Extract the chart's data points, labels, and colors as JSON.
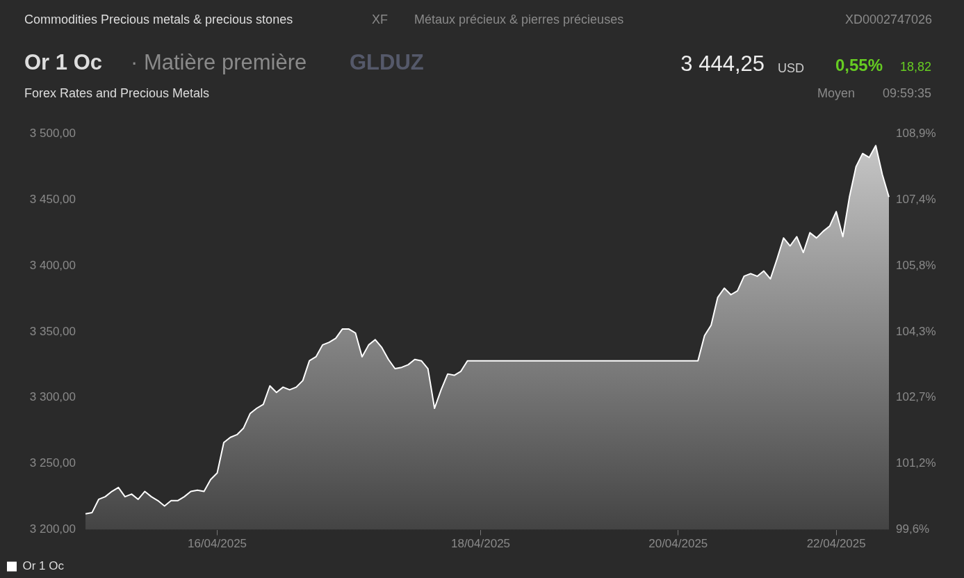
{
  "chart_data": {
    "type": "area",
    "title": "Or 1 Oc",
    "annotations": [
      "Commodities Precious metals & precious stones",
      "XF",
      "Métaux précieux & pierres précieuses",
      "XD0002747026",
      "· Matière première",
      "GLDUZ",
      "3 444,25",
      "USD",
      "0,55%",
      "18,82",
      "Forex Rates and Precious Metals",
      "Moyen",
      "09:59:35"
    ],
    "categories": [
      null,
      null,
      null,
      null,
      null,
      null,
      null,
      null,
      null,
      null,
      null,
      null,
      null,
      null,
      null,
      null,
      null,
      null,
      null,
      null,
      "16/04/2025",
      null,
      null,
      null,
      null,
      null,
      null,
      null,
      null,
      null,
      null,
      null,
      null,
      null,
      null,
      null,
      null,
      null,
      null,
      null,
      null,
      null,
      null,
      null,
      null,
      null,
      null,
      null,
      null,
      null,
      null,
      null,
      null,
      null,
      null,
      null,
      null,
      null,
      null,
      null,
      "18/04/2025",
      null,
      null,
      null,
      null,
      null,
      null,
      null,
      null,
      null,
      null,
      null,
      null,
      null,
      null,
      null,
      null,
      null,
      null,
      null,
      null,
      null,
      null,
      null,
      null,
      null,
      null,
      null,
      null,
      null,
      "20/04/2025",
      null,
      null,
      null,
      null,
      null,
      null,
      null,
      null,
      null,
      null,
      null,
      null,
      null,
      null,
      null,
      null,
      null,
      null,
      null,
      null,
      null,
      null,
      null,
      "22/04/2025",
      null,
      null,
      null,
      null,
      null,
      null,
      null,
      null
    ],
    "series": [
      {
        "name": "Or 1 Oc",
        "color": "#ffffff",
        "values": [
          3212,
          3213,
          3223,
          3225,
          3229,
          3232,
          3225,
          3227,
          3223,
          3229,
          3225,
          3222,
          3218,
          3222,
          3222,
          3225,
          3229,
          3230,
          3229,
          3238,
          3243,
          3266,
          3270,
          3272,
          3277,
          3288,
          3292,
          3295,
          3309,
          3304,
          3308,
          3306,
          3308,
          3313,
          3328,
          3331,
          3340,
          3342,
          3345,
          3352,
          3352,
          3349,
          3331,
          3340,
          3344,
          3338,
          3329,
          3322,
          3323,
          3325,
          3329,
          3328,
          3322,
          3292,
          3306,
          3318,
          3317,
          3320,
          3328,
          3328,
          3328,
          3328,
          3328,
          3328,
          3328,
          3328,
          3328,
          3328,
          3328,
          3328,
          3328,
          3328,
          3328,
          3328,
          3328,
          3328,
          3328,
          3328,
          3328,
          3328,
          3328,
          3328,
          3328,
          3328,
          3328,
          3328,
          3328,
          3328,
          3328,
          3328,
          3328,
          3328,
          3328,
          3328,
          3347,
          3355,
          3376,
          3383,
          3378,
          3381,
          3392,
          3394,
          3392,
          3396,
          3390,
          3405,
          3421,
          3415,
          3422,
          3410,
          3425,
          3421,
          3426,
          3430,
          3441,
          3422,
          3452,
          3475,
          3485,
          3482,
          3491,
          3469,
          3452
        ]
      }
    ],
    "ylim": [
      3200,
      3500
    ],
    "yticks": [
      {
        "value": 3200,
        "label": "3 200,00"
      },
      {
        "value": 3250,
        "label": "3 250,00"
      },
      {
        "value": 3300,
        "label": "3 300,00"
      },
      {
        "value": 3350,
        "label": "3 350,00"
      },
      {
        "value": 3400,
        "label": "3 400,00"
      },
      {
        "value": 3450,
        "label": "3 450,00"
      },
      {
        "value": 3500,
        "label": "3 500,00"
      }
    ],
    "y2lim": [
      99.6,
      108.9
    ],
    "y2ticks": [
      {
        "value": 99.6,
        "label": "99,6%"
      },
      {
        "value": 101.15,
        "label": "101,2%"
      },
      {
        "value": 102.7,
        "label": "102,7%"
      },
      {
        "value": 104.25,
        "label": "104,3%"
      },
      {
        "value": 105.8,
        "label": "105,8%"
      },
      {
        "value": 107.35,
        "label": "107,4%"
      },
      {
        "value": 108.9,
        "label": "108,9%"
      }
    ],
    "legend": "bottom left"
  }
}
